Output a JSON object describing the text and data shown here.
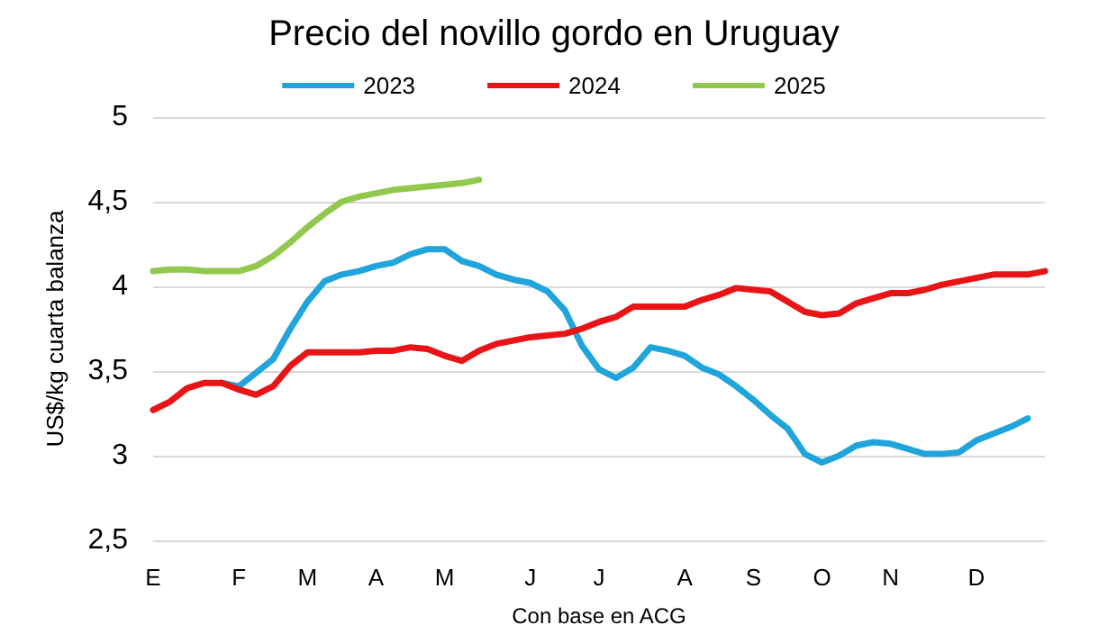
{
  "chart_data": {
    "type": "line",
    "title": "Precio del novillo gordo en Uruguay",
    "xlabel": "Con base en ACG",
    "ylabel": "US$/kg cuarta balanza",
    "categories": [
      "E",
      null,
      null,
      null,
      null,
      "F",
      null,
      null,
      null,
      "M",
      null,
      null,
      null,
      "A",
      null,
      null,
      null,
      "M",
      null,
      null,
      null,
      null,
      "J",
      null,
      null,
      null,
      "J",
      null,
      null,
      null,
      null,
      "A",
      null,
      null,
      null,
      "S",
      null,
      null,
      null,
      "O",
      null,
      null,
      null,
      "N",
      null,
      null,
      null,
      null,
      "D",
      null,
      null,
      null,
      null
    ],
    "series": [
      {
        "name": "2023",
        "color": "#1fa5dc",
        "values": [
          null,
          null,
          null,
          null,
          3.43,
          3.41,
          3.49,
          3.57,
          3.75,
          3.91,
          4.03,
          4.07,
          4.09,
          4.12,
          4.14,
          4.19,
          4.22,
          4.22,
          4.15,
          4.12,
          4.07,
          4.04,
          4.02,
          3.97,
          3.86,
          3.65,
          3.51,
          3.46,
          3.52,
          3.64,
          3.62,
          3.59,
          3.52,
          3.48,
          3.41,
          3.33,
          3.24,
          3.16,
          3.01,
          2.96,
          3.0,
          3.06,
          3.08,
          3.07,
          3.04,
          3.01,
          3.01,
          3.02,
          3.09,
          3.13,
          3.17,
          3.22,
          null
        ]
      },
      {
        "name": "2024",
        "color": "#e81416",
        "values": [
          3.27,
          3.32,
          3.4,
          3.43,
          3.43,
          3.39,
          3.36,
          3.41,
          3.53,
          3.61,
          3.61,
          3.61,
          3.61,
          3.62,
          3.62,
          3.64,
          3.63,
          3.59,
          3.56,
          3.62,
          3.66,
          3.68,
          3.7,
          3.71,
          3.72,
          3.75,
          3.79,
          3.82,
          3.88,
          3.88,
          3.88,
          3.88,
          3.92,
          3.95,
          3.99,
          3.98,
          3.97,
          3.91,
          3.85,
          3.83,
          3.84,
          3.9,
          3.93,
          3.96,
          3.96,
          3.98,
          4.01,
          4.03,
          4.05,
          4.07,
          4.07,
          4.07,
          4.09
        ]
      },
      {
        "name": "2025",
        "color": "#92c84e",
        "values": [
          4.09,
          4.1,
          4.1,
          4.09,
          4.09,
          4.09,
          4.12,
          4.18,
          4.26,
          4.35,
          4.43,
          4.5,
          4.53,
          4.55,
          4.57,
          4.58,
          4.59,
          4.6,
          4.61,
          4.63,
          null,
          null,
          null,
          null,
          null,
          null,
          null,
          null,
          null,
          null,
          null,
          null,
          null,
          null,
          null,
          null,
          null,
          null,
          null,
          null,
          null,
          null,
          null,
          null,
          null,
          null,
          null,
          null,
          null,
          null,
          null,
          null,
          null
        ]
      }
    ],
    "ylim": [
      2.5,
      5
    ],
    "yticks": [
      {
        "value": 2.5,
        "label": "2,5"
      },
      3,
      {
        "value": 3.5,
        "label": "3,5"
      },
      4,
      {
        "value": 4.5,
        "label": "4,5"
      },
      5
    ],
    "grid": "y",
    "legend": "top",
    "marker": "none",
    "line_style": "solid"
  }
}
